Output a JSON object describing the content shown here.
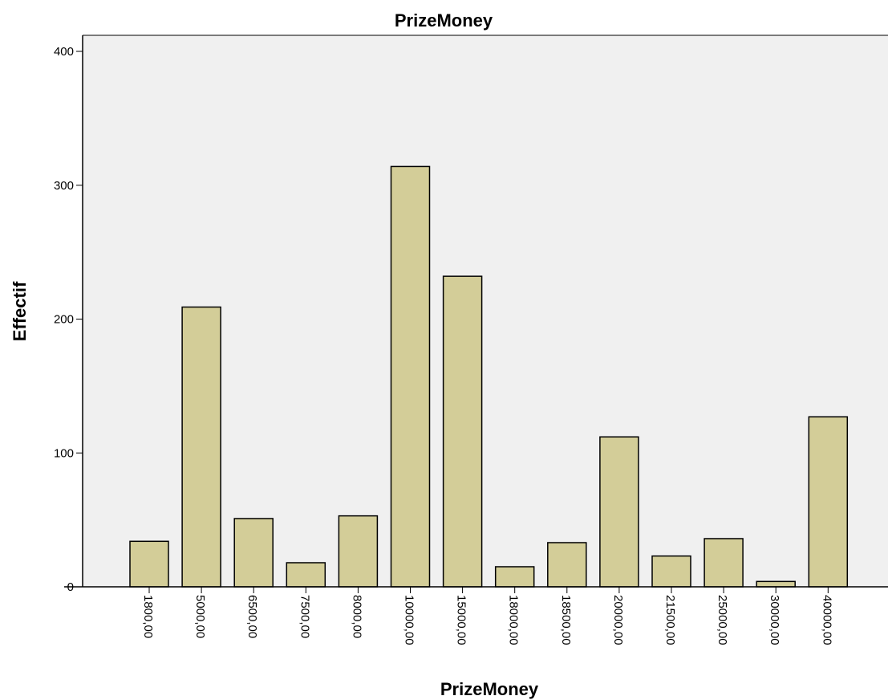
{
  "chart_data": {
    "type": "bar",
    "title": "PrizeMoney",
    "xlabel": "PrizeMoney",
    "ylabel": "Effectif",
    "categories": [
      "1800,00",
      "5000,00",
      "6500,00",
      "7500,00",
      "8000,00",
      "10000,00",
      "15000,00",
      "18000,00",
      "18500,00",
      "20000,00",
      "21500,00",
      "25000,00",
      "30000,00",
      "40000,00"
    ],
    "values": [
      34,
      209,
      51,
      18,
      53,
      314,
      232,
      15,
      33,
      112,
      23,
      36,
      4,
      127
    ],
    "ylim": [
      0,
      400
    ],
    "yticks": [
      0,
      100,
      200,
      300,
      400
    ],
    "grid": false,
    "colors": {
      "bar": "#d3cd98",
      "bar_edge": "#000000",
      "plot_bg": "#f0f0f0"
    }
  }
}
